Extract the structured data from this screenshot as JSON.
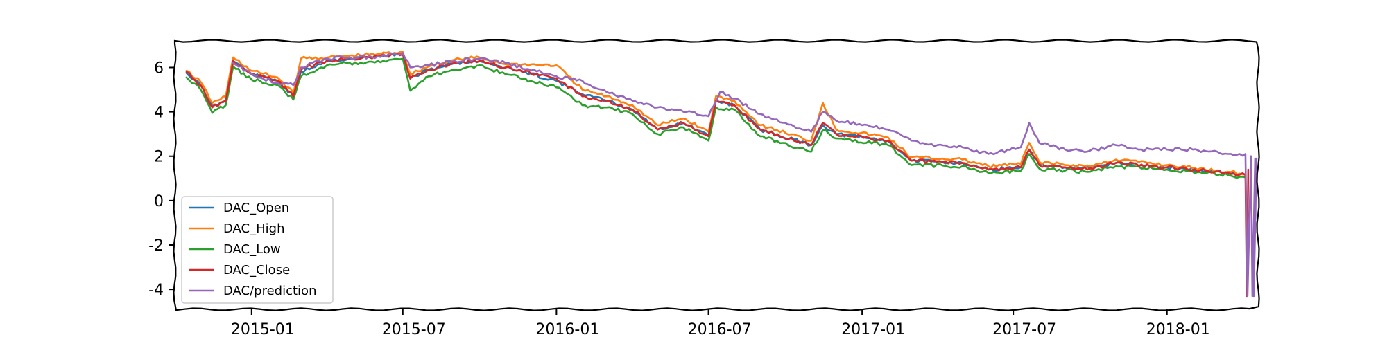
{
  "chart_data": {
    "type": "line",
    "title": "",
    "xlabel": "",
    "ylabel": "",
    "x_range": [
      "2014-10-01",
      "2018-04-20"
    ],
    "ylim": [
      -4.9,
      7.2
    ],
    "x_ticks": [
      "2015-01",
      "2015-07",
      "2016-01",
      "2016-07",
      "2017-01",
      "2017-07",
      "2018-01"
    ],
    "y_ticks": [
      -4,
      -2,
      0,
      2,
      4,
      6
    ],
    "grid": false,
    "legend_position": "lower-left",
    "style": "xkcd",
    "series": [
      {
        "name": "DAC_Open",
        "color": "#1f77b4",
        "points": [
          [
            "2014-10-15",
            5.75
          ],
          [
            "2014-11-01",
            5.2
          ],
          [
            "2014-11-15",
            4.25
          ],
          [
            "2014-12-01",
            4.5
          ],
          [
            "2014-12-10",
            6.3
          ],
          [
            "2015-01-01",
            5.7
          ],
          [
            "2015-02-01",
            5.4
          ],
          [
            "2015-02-20",
            4.7
          ],
          [
            "2015-03-01",
            5.8
          ],
          [
            "2015-04-01",
            6.3
          ],
          [
            "2015-06-01",
            6.5
          ],
          [
            "2015-07-01",
            6.6
          ],
          [
            "2015-07-10",
            5.5
          ],
          [
            "2015-08-01",
            5.9
          ],
          [
            "2015-09-01",
            6.2
          ],
          [
            "2015-10-01",
            6.3
          ],
          [
            "2015-11-01",
            6.0
          ],
          [
            "2016-01-01",
            5.4
          ],
          [
            "2016-02-01",
            4.8
          ],
          [
            "2016-03-01",
            4.5
          ],
          [
            "2016-04-01",
            4.1
          ],
          [
            "2016-05-01",
            3.2
          ],
          [
            "2016-06-01",
            3.5
          ],
          [
            "2016-07-01",
            2.9
          ],
          [
            "2016-07-10",
            4.5
          ],
          [
            "2016-08-01",
            4.3
          ],
          [
            "2016-09-01",
            3.2
          ],
          [
            "2016-11-01",
            2.5
          ],
          [
            "2016-11-15",
            3.4
          ],
          [
            "2016-12-01",
            3.0
          ],
          [
            "2017-02-01",
            2.7
          ],
          [
            "2017-03-01",
            1.8
          ],
          [
            "2017-05-01",
            1.7
          ],
          [
            "2017-06-01",
            1.4
          ],
          [
            "2017-07-10",
            1.5
          ],
          [
            "2017-07-20",
            2.3
          ],
          [
            "2017-08-01",
            1.6
          ],
          [
            "2017-09-01",
            1.5
          ],
          [
            "2017-10-01",
            1.45
          ],
          [
            "2017-11-01",
            1.7
          ],
          [
            "2018-01-01",
            1.5
          ],
          [
            "2018-03-15",
            1.25
          ],
          [
            "2018-04-05",
            1.15
          ]
        ]
      },
      {
        "name": "DAC_High",
        "color": "#ff7f0e",
        "points": [
          [
            "2014-10-15",
            5.85
          ],
          [
            "2014-11-01",
            5.35
          ],
          [
            "2014-11-15",
            4.4
          ],
          [
            "2014-12-01",
            4.7
          ],
          [
            "2014-12-10",
            6.45
          ],
          [
            "2015-01-01",
            5.85
          ],
          [
            "2015-02-01",
            5.55
          ],
          [
            "2015-02-20",
            4.85
          ],
          [
            "2015-03-01",
            6.4
          ],
          [
            "2015-04-01",
            6.45
          ],
          [
            "2015-06-01",
            6.6
          ],
          [
            "2015-07-01",
            6.7
          ],
          [
            "2015-07-10",
            5.7
          ],
          [
            "2015-08-01",
            6.05
          ],
          [
            "2015-09-01",
            6.35
          ],
          [
            "2015-10-01",
            6.45
          ],
          [
            "2015-11-01",
            6.15
          ],
          [
            "2016-01-01",
            6.1
          ],
          [
            "2016-02-01",
            5.0
          ],
          [
            "2016-03-01",
            4.7
          ],
          [
            "2016-04-01",
            4.3
          ],
          [
            "2016-05-01",
            3.4
          ],
          [
            "2016-06-01",
            3.7
          ],
          [
            "2016-07-01",
            3.1
          ],
          [
            "2016-07-10",
            4.7
          ],
          [
            "2016-08-01",
            4.5
          ],
          [
            "2016-09-01",
            3.4
          ],
          [
            "2016-11-01",
            2.7
          ],
          [
            "2016-11-15",
            4.4
          ],
          [
            "2016-12-01",
            3.2
          ],
          [
            "2017-02-01",
            2.85
          ],
          [
            "2017-03-01",
            1.95
          ],
          [
            "2017-05-01",
            1.85
          ],
          [
            "2017-06-01",
            1.55
          ],
          [
            "2017-07-10",
            1.65
          ],
          [
            "2017-07-20",
            2.6
          ],
          [
            "2017-08-01",
            1.75
          ],
          [
            "2017-09-01",
            1.6
          ],
          [
            "2017-10-01",
            1.55
          ],
          [
            "2017-11-01",
            1.85
          ],
          [
            "2018-01-01",
            1.6
          ],
          [
            "2018-03-15",
            1.3
          ],
          [
            "2018-04-05",
            1.2
          ]
        ]
      },
      {
        "name": "DAC_Low",
        "color": "#2ca02c",
        "points": [
          [
            "2014-10-15",
            5.55
          ],
          [
            "2014-11-01",
            5.0
          ],
          [
            "2014-11-15",
            3.95
          ],
          [
            "2014-12-01",
            4.3
          ],
          [
            "2014-12-10",
            6.05
          ],
          [
            "2015-01-01",
            5.45
          ],
          [
            "2015-02-01",
            5.2
          ],
          [
            "2015-02-20",
            4.55
          ],
          [
            "2015-03-01",
            5.6
          ],
          [
            "2015-04-01",
            6.1
          ],
          [
            "2015-06-01",
            6.3
          ],
          [
            "2015-07-01",
            6.4
          ],
          [
            "2015-07-10",
            4.95
          ],
          [
            "2015-08-01",
            5.6
          ],
          [
            "2015-09-01",
            5.9
          ],
          [
            "2015-10-01",
            6.1
          ],
          [
            "2015-11-01",
            5.7
          ],
          [
            "2016-01-01",
            5.1
          ],
          [
            "2016-02-01",
            4.3
          ],
          [
            "2016-03-01",
            4.2
          ],
          [
            "2016-04-01",
            3.9
          ],
          [
            "2016-05-01",
            3.0
          ],
          [
            "2016-06-01",
            3.3
          ],
          [
            "2016-07-01",
            2.7
          ],
          [
            "2016-07-10",
            4.2
          ],
          [
            "2016-08-01",
            4.1
          ],
          [
            "2016-09-01",
            2.9
          ],
          [
            "2016-11-01",
            2.2
          ],
          [
            "2016-11-15",
            3.2
          ],
          [
            "2016-12-01",
            2.8
          ],
          [
            "2017-02-01",
            2.5
          ],
          [
            "2017-03-01",
            1.6
          ],
          [
            "2017-05-01",
            1.55
          ],
          [
            "2017-06-01",
            1.25
          ],
          [
            "2017-07-10",
            1.35
          ],
          [
            "2017-07-20",
            2.1
          ],
          [
            "2017-08-01",
            1.45
          ],
          [
            "2017-09-01",
            1.35
          ],
          [
            "2017-10-01",
            1.3
          ],
          [
            "2017-11-01",
            1.55
          ],
          [
            "2018-01-01",
            1.4
          ],
          [
            "2018-03-15",
            1.15
          ],
          [
            "2018-04-05",
            1.05
          ]
        ]
      },
      {
        "name": "DAC_Close",
        "color": "#d62728",
        "points": [
          [
            "2014-10-15",
            5.8
          ],
          [
            "2014-11-01",
            5.2
          ],
          [
            "2014-11-15",
            4.2
          ],
          [
            "2014-12-01",
            4.5
          ],
          [
            "2014-12-10",
            6.3
          ],
          [
            "2015-01-01",
            5.7
          ],
          [
            "2015-02-01",
            5.4
          ],
          [
            "2015-02-20",
            4.7
          ],
          [
            "2015-03-01",
            5.9
          ],
          [
            "2015-04-01",
            6.3
          ],
          [
            "2015-06-01",
            6.5
          ],
          [
            "2015-07-01",
            6.6
          ],
          [
            "2015-07-10",
            5.5
          ],
          [
            "2015-08-01",
            5.9
          ],
          [
            "2015-09-01",
            6.2
          ],
          [
            "2015-10-01",
            6.3
          ],
          [
            "2015-11-01",
            6.0
          ],
          [
            "2016-01-01",
            5.5
          ],
          [
            "2016-02-01",
            4.7
          ],
          [
            "2016-03-01",
            4.5
          ],
          [
            "2016-04-01",
            4.1
          ],
          [
            "2016-05-01",
            3.2
          ],
          [
            "2016-06-01",
            3.5
          ],
          [
            "2016-07-01",
            2.9
          ],
          [
            "2016-07-10",
            4.5
          ],
          [
            "2016-08-01",
            4.3
          ],
          [
            "2016-09-01",
            3.2
          ],
          [
            "2016-11-01",
            2.5
          ],
          [
            "2016-11-15",
            3.5
          ],
          [
            "2016-12-01",
            3.0
          ],
          [
            "2017-02-01",
            2.7
          ],
          [
            "2017-03-01",
            1.8
          ],
          [
            "2017-05-01",
            1.7
          ],
          [
            "2017-06-01",
            1.4
          ],
          [
            "2017-07-10",
            1.5
          ],
          [
            "2017-07-20",
            2.3
          ],
          [
            "2017-08-01",
            1.6
          ],
          [
            "2017-09-01",
            1.5
          ],
          [
            "2017-10-01",
            1.45
          ],
          [
            "2017-11-01",
            1.7
          ],
          [
            "2018-01-01",
            1.5
          ],
          [
            "2018-03-15",
            1.25
          ],
          [
            "2018-04-05",
            1.15
          ]
        ]
      },
      {
        "name": "DAC/prediction",
        "color": "#9467bd",
        "points": [
          [
            "2014-12-10",
            6.2
          ],
          [
            "2015-01-01",
            5.7
          ],
          [
            "2015-02-01",
            5.3
          ],
          [
            "2015-02-20",
            5.2
          ],
          [
            "2015-03-01",
            6.0
          ],
          [
            "2015-04-01",
            6.4
          ],
          [
            "2015-06-01",
            6.5
          ],
          [
            "2015-07-01",
            6.65
          ],
          [
            "2015-07-10",
            6.0
          ],
          [
            "2015-08-01",
            6.1
          ],
          [
            "2015-09-01",
            6.3
          ],
          [
            "2015-10-01",
            6.4
          ],
          [
            "2015-11-01",
            6.2
          ],
          [
            "2016-01-01",
            5.6
          ],
          [
            "2016-02-01",
            5.4
          ],
          [
            "2016-03-01",
            4.9
          ],
          [
            "2016-04-01",
            4.5
          ],
          [
            "2016-05-01",
            4.2
          ],
          [
            "2016-06-01",
            4.0
          ],
          [
            "2016-07-01",
            3.8
          ],
          [
            "2016-07-15",
            4.9
          ],
          [
            "2016-08-01",
            4.6
          ],
          [
            "2016-09-01",
            3.9
          ],
          [
            "2016-10-01",
            3.5
          ],
          [
            "2016-11-01",
            3.1
          ],
          [
            "2016-11-15",
            4.0
          ],
          [
            "2016-12-01",
            3.6
          ],
          [
            "2017-01-01",
            3.4
          ],
          [
            "2017-02-01",
            3.2
          ],
          [
            "2017-03-01",
            2.7
          ],
          [
            "2017-04-01",
            2.5
          ],
          [
            "2017-05-01",
            2.4
          ],
          [
            "2017-06-01",
            2.1
          ],
          [
            "2017-07-10",
            2.4
          ],
          [
            "2017-07-20",
            3.5
          ],
          [
            "2017-08-01",
            2.6
          ],
          [
            "2017-09-01",
            2.3
          ],
          [
            "2017-10-01",
            2.25
          ],
          [
            "2017-11-01",
            2.5
          ],
          [
            "2017-12-01",
            2.3
          ],
          [
            "2018-01-01",
            2.3
          ],
          [
            "2018-02-01",
            2.3
          ],
          [
            "2018-03-15",
            2.1
          ],
          [
            "2018-04-05",
            2.1
          ]
        ]
      }
    ]
  }
}
